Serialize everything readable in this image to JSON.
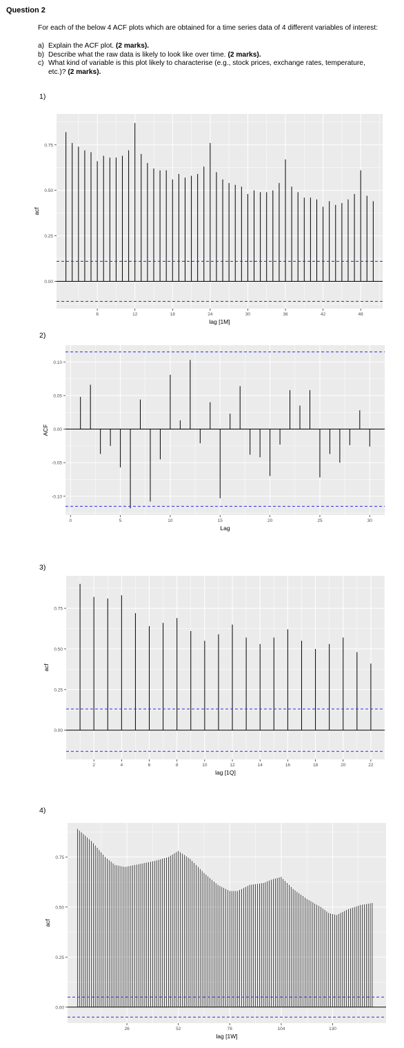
{
  "question": {
    "title": "Question 2",
    "intro": "For each of the below 4 ACF plots which are obtained for a time series data of 4 different variables of interest:",
    "items": [
      {
        "letter": "a)",
        "text": "Explain the ACF plot. ",
        "marks": "(2 marks)."
      },
      {
        "letter": "b)",
        "text": "Describe what the raw data is likely to look like over time. ",
        "marks": "(2 marks)."
      },
      {
        "letter": "c)",
        "text": "What kind of variable is this plot likely to characterise (e.g., stock prices, exchange rates, temperature, etc.)? ",
        "marks": "(2 marks)."
      }
    ]
  },
  "colors": {
    "panel": "#ebebeb",
    "grid": "#ffffff",
    "bar": "#000000",
    "ci": "#2a2ae6",
    "axis_text": "#4d4d4d"
  },
  "chart_data": [
    {
      "label": "1)",
      "type": "bar",
      "xlabel": "lag [1M]",
      "ylabel": "acf",
      "x": [
        1,
        2,
        3,
        4,
        5,
        6,
        7,
        8,
        9,
        10,
        11,
        12,
        13,
        14,
        15,
        16,
        17,
        18,
        19,
        20,
        21,
        22,
        23,
        24,
        25,
        26,
        27,
        28,
        29,
        30,
        31,
        32,
        33,
        34,
        35,
        36,
        37,
        38,
        39,
        40,
        41,
        42,
        43,
        44,
        45,
        46,
        47,
        48,
        49,
        50
      ],
      "values": [
        0.82,
        0.76,
        0.74,
        0.72,
        0.71,
        0.66,
        0.69,
        0.68,
        0.68,
        0.69,
        0.72,
        0.87,
        0.7,
        0.65,
        0.62,
        0.61,
        0.61,
        0.56,
        0.59,
        0.57,
        0.58,
        0.59,
        0.63,
        0.76,
        0.6,
        0.56,
        0.54,
        0.53,
        0.52,
        0.48,
        0.5,
        0.49,
        0.49,
        0.5,
        0.54,
        0.67,
        0.52,
        0.49,
        0.46,
        0.46,
        0.45,
        0.41,
        0.44,
        0.42,
        0.43,
        0.45,
        0.48,
        0.61,
        0.47,
        0.44
      ],
      "ci": 0.11,
      "xlim": [
        -0.5,
        51.5
      ],
      "ylim": [
        -0.15,
        0.92
      ],
      "xticks": [
        6,
        12,
        18,
        24,
        30,
        36,
        42,
        48
      ],
      "yticks": [
        0,
        0.25,
        0.5,
        0.75
      ],
      "ytick_labels": [
        "0.00",
        "0.25",
        "0.50",
        "0.75"
      ]
    },
    {
      "label": "2)",
      "type": "bar",
      "xlabel": "Lag",
      "ylabel": "ACF",
      "x": [
        1,
        2,
        3,
        4,
        5,
        6,
        7,
        8,
        9,
        10,
        11,
        12,
        13,
        14,
        15,
        16,
        17,
        18,
        19,
        20,
        21,
        22,
        23,
        24,
        25,
        26,
        27,
        28,
        29,
        30
      ],
      "values": [
        0.048,
        0.066,
        -0.037,
        -0.025,
        -0.057,
        -0.118,
        0.044,
        -0.108,
        -0.045,
        0.081,
        0.013,
        0.103,
        -0.021,
        0.04,
        -0.103,
        0.023,
        0.064,
        -0.038,
        -0.042,
        -0.07,
        -0.023,
        0.058,
        0.035,
        0.058,
        -0.072,
        -0.037,
        -0.05,
        -0.024,
        0.028,
        -0.026
      ],
      "ci": 0.115,
      "xlim": [
        -0.5,
        31.5
      ],
      "ylim": [
        -0.128,
        0.125
      ],
      "xticks": [
        0,
        5,
        10,
        15,
        20,
        25,
        30
      ],
      "yticks": [
        -0.1,
        -0.05,
        0,
        0.05,
        0.1
      ],
      "ytick_labels": [
        "-0.10",
        "-0.05",
        "0.00",
        "0.05",
        "0.10"
      ]
    },
    {
      "label": "3)",
      "type": "bar",
      "xlabel": "lag [1Q]",
      "ylabel": "acf",
      "x": [
        1,
        2,
        3,
        4,
        5,
        6,
        7,
        8,
        9,
        10,
        11,
        12,
        13,
        14,
        15,
        16,
        17,
        18,
        19,
        20,
        21,
        22
      ],
      "values": [
        0.9,
        0.82,
        0.81,
        0.83,
        0.72,
        0.64,
        0.66,
        0.69,
        0.61,
        0.55,
        0.59,
        0.65,
        0.57,
        0.53,
        0.57,
        0.62,
        0.55,
        0.5,
        0.53,
        0.57,
        0.48,
        0.41
      ],
      "ci": 0.13,
      "xlim": [
        0,
        23
      ],
      "ylim": [
        -0.18,
        0.95
      ],
      "xticks": [
        2,
        4,
        6,
        8,
        10,
        12,
        14,
        16,
        18,
        20,
        22
      ],
      "yticks": [
        0,
        0.25,
        0.5,
        0.75
      ],
      "ytick_labels": [
        "0.00",
        "0.25",
        "0.50",
        "0.75"
      ]
    },
    {
      "label": "4)",
      "type": "bar",
      "xlabel": "lag [1W]",
      "ylabel": "acf",
      "anchors": [
        [
          1,
          0.89
        ],
        [
          8,
          0.83
        ],
        [
          15,
          0.75
        ],
        [
          20,
          0.71
        ],
        [
          25,
          0.7
        ],
        [
          30,
          0.71
        ],
        [
          40,
          0.73
        ],
        [
          47,
          0.75
        ],
        [
          52,
          0.78
        ],
        [
          58,
          0.74
        ],
        [
          65,
          0.67
        ],
        [
          72,
          0.61
        ],
        [
          78,
          0.58
        ],
        [
          82,
          0.58
        ],
        [
          88,
          0.61
        ],
        [
          95,
          0.62
        ],
        [
          100,
          0.64
        ],
        [
          104,
          0.65
        ],
        [
          110,
          0.59
        ],
        [
          117,
          0.54
        ],
        [
          124,
          0.5
        ],
        [
          128,
          0.47
        ],
        [
          132,
          0.46
        ],
        [
          138,
          0.49
        ],
        [
          144,
          0.51
        ],
        [
          150,
          0.52
        ]
      ],
      "ci": 0.05,
      "xlim": [
        -4,
        157
      ],
      "ylim": [
        -0.08,
        0.92
      ],
      "xticks": [
        26,
        52,
        78,
        104,
        130
      ],
      "yticks": [
        0,
        0.25,
        0.5,
        0.75
      ],
      "ytick_labels": [
        "0.00",
        "0.25",
        "0.50",
        "0.75"
      ]
    }
  ]
}
